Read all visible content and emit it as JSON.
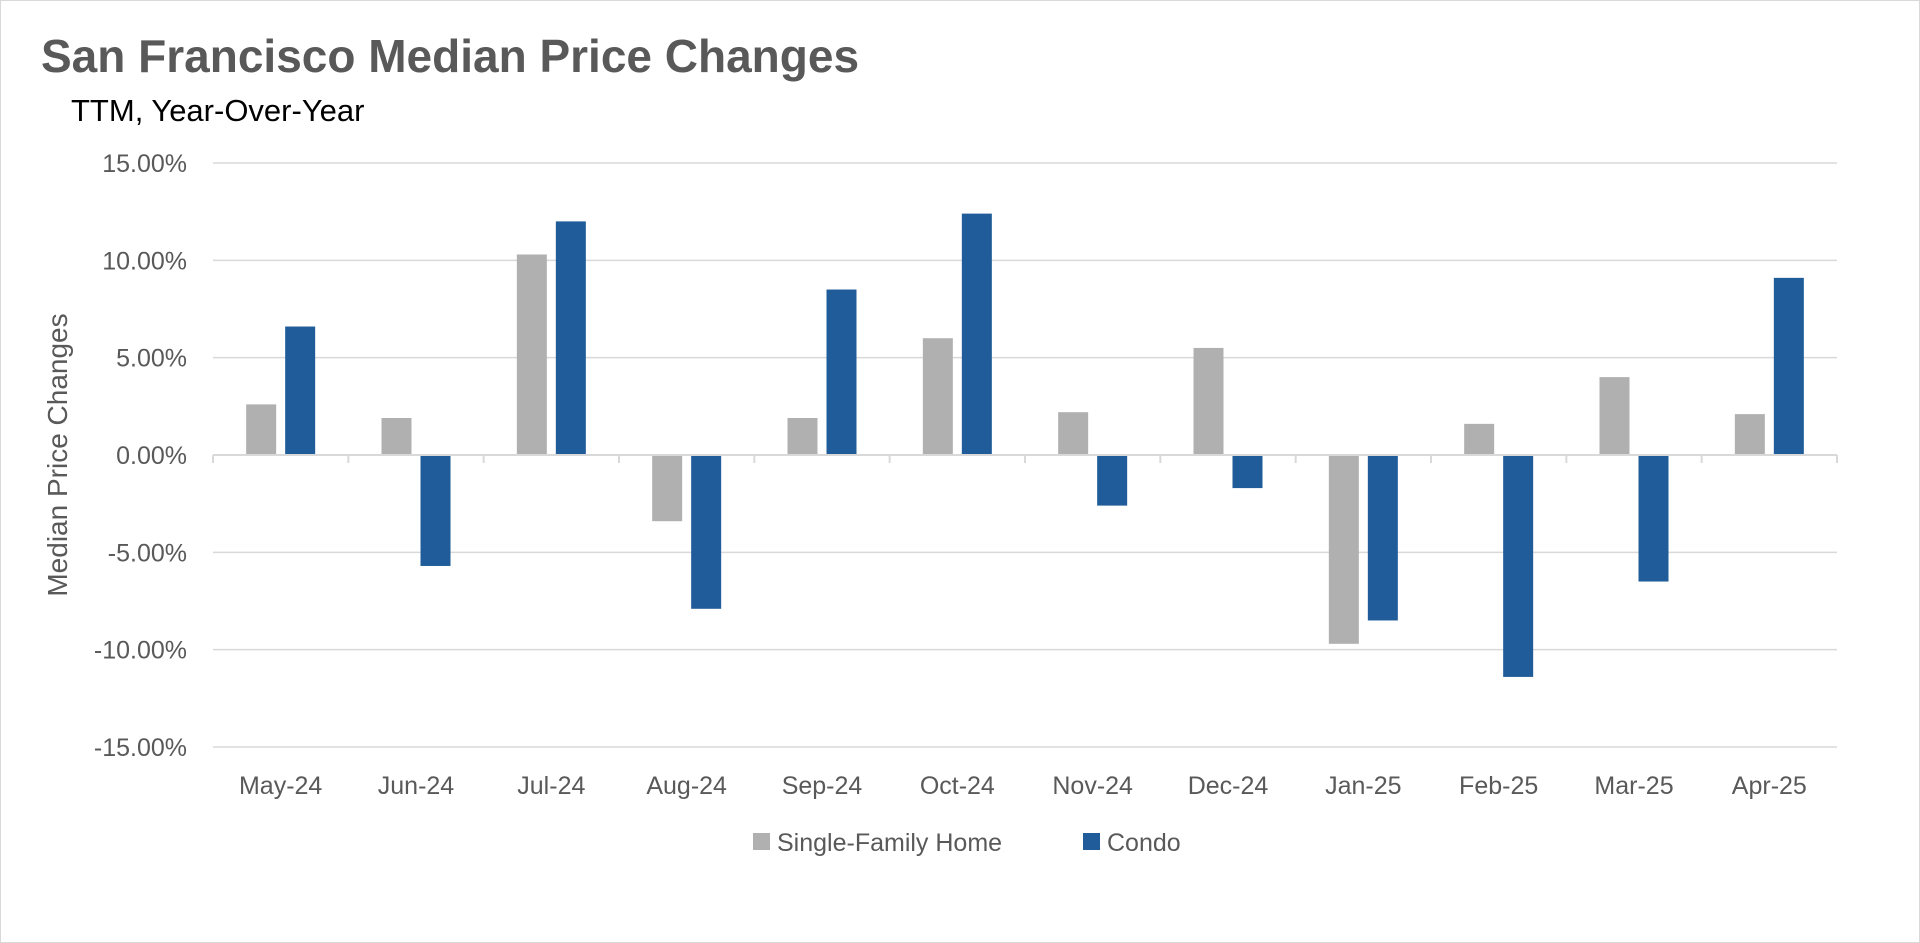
{
  "chart_data": {
    "type": "bar",
    "title": "San Francisco Median Price Changes",
    "subtitle": "TTM, Year-Over-Year",
    "xlabel": "",
    "ylabel": "Median Price Changes",
    "ylim": [
      -15,
      15
    ],
    "yticks": [
      15,
      10,
      5,
      0,
      -5,
      -10,
      -15
    ],
    "ytick_labels": [
      "15.00%",
      "10.00%",
      "5.00%",
      "0.00%",
      "-5.00%",
      "-10.00%",
      "-15.00%"
    ],
    "grid": true,
    "legend_position": "bottom",
    "categories": [
      "May-24",
      "Jun-24",
      "Jul-24",
      "Aug-24",
      "Sep-24",
      "Oct-24",
      "Nov-24",
      "Dec-24",
      "Jan-25",
      "Feb-25",
      "Mar-25",
      "Apr-25"
    ],
    "series": [
      {
        "name": "Single-Family Home",
        "color": "#b0b0b0",
        "values": [
          2.6,
          1.9,
          10.3,
          -3.4,
          1.9,
          6.0,
          2.2,
          5.5,
          -9.7,
          1.6,
          4.0,
          2.1
        ]
      },
      {
        "name": "Condo",
        "color": "#1f5c99",
        "values": [
          6.6,
          -5.7,
          12.0,
          -7.9,
          8.5,
          12.4,
          -2.6,
          -1.7,
          -8.5,
          -11.4,
          -6.5,
          9.1
        ]
      }
    ]
  }
}
